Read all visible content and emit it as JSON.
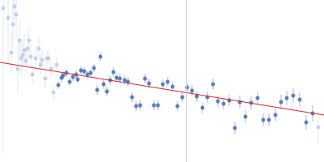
{
  "chart_data": {
    "type": "scatter",
    "xlim": [
      0,
      400
    ],
    "ylim": [
      0,
      200
    ],
    "tick_labels": false,
    "grid": false,
    "vline_x": 230,
    "vline_color": "#c8d2e6",
    "fit": {
      "type": "line",
      "x": [
        0,
        400
      ],
      "values": [
        123,
        58
      ],
      "color": "#d9262a"
    },
    "series": [
      {
        "color": "#b9c7e2",
        "marker": "circle",
        "x": [
          4,
          10,
          14,
          16,
          18,
          20,
          22,
          24,
          26,
          28,
          30,
          32,
          34,
          36,
          38,
          40,
          44,
          48,
          50,
          52,
          56,
          58,
          60,
          63,
          66,
          70
        ],
        "values": [
          190,
          178,
          135,
          170,
          192,
          182,
          115,
          150,
          128,
          132,
          138,
          125,
          140,
          150,
          130,
          108,
          128,
          140,
          120,
          126,
          103,
          128,
          128,
          115,
          86,
          120
        ],
        "errors": [
          180,
          60,
          25,
          30,
          15,
          30,
          30,
          25,
          20,
          20,
          20,
          15,
          20,
          15,
          15,
          12,
          15,
          15,
          12,
          12,
          12,
          10,
          10,
          10,
          10,
          10
        ]
      },
      {
        "color": "#3a64ad",
        "marker": "circle",
        "x": [
          72,
          76,
          78,
          82,
          86,
          90,
          94,
          96,
          100,
          104,
          108,
          112,
          116,
          120,
          124,
          128,
          132,
          136,
          140,
          144,
          148,
          154,
          158,
          163,
          168,
          173,
          179,
          184,
          190,
          195,
          201,
          207,
          213,
          219,
          225,
          231,
          237,
          243,
          250,
          256,
          263,
          269,
          276,
          283,
          290,
          296,
          303,
          310,
          318,
          325,
          332,
          340,
          347,
          354,
          362,
          370,
          378,
          386
        ],
        "values": [
          95,
          104,
          107,
          110,
          99,
          105,
          108,
          102,
          113,
          112,
          108,
          110,
          116,
          89,
          130,
          96,
          87,
          101,
          111,
          104,
          103,
          101,
          99,
          80,
          69,
          70,
          103,
          97,
          70,
          70,
          96,
          99,
          93,
          69,
          80,
          92,
          88,
          81,
          67,
          80,
          96,
          75,
          72,
          76,
          42,
          74,
          56,
          73,
          79,
          52,
          52,
          58,
          74,
          79,
          82,
          77,
          49,
          60
        ],
        "errors": [
          5,
          5,
          5,
          5,
          5,
          5,
          5,
          5,
          5,
          5,
          5,
          5,
          5,
          6,
          6,
          6,
          6,
          6,
          6,
          6,
          6,
          6,
          6,
          6,
          6,
          6,
          6,
          6,
          6,
          6,
          6,
          6,
          6,
          6,
          6,
          6,
          7,
          7,
          7,
          7,
          7,
          7,
          7,
          7,
          8,
          8,
          8,
          8,
          8,
          8,
          8,
          8,
          9,
          9,
          9,
          9,
          9,
          10
        ]
      },
      {
        "color": "#b9c7e2",
        "marker": "circle",
        "x": [
          393
        ],
        "values": [
          43
        ],
        "errors": [
          20
        ]
      }
    ]
  }
}
